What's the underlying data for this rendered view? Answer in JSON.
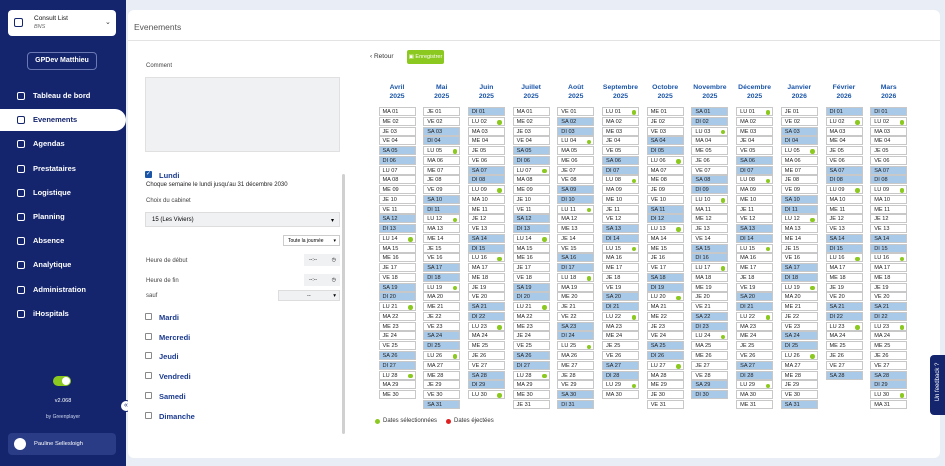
{
  "sidebar": {
    "org_title": "Consult List",
    "org_subtitle": "BNS",
    "user_button": "GPDev Matthieu",
    "menu": [
      "Tableau de bord",
      "Evenements",
      "Agendas",
      "Prestataires",
      "Logistique",
      "Planning",
      "Absence",
      "Analytique",
      "Administration",
      "iHospitals"
    ],
    "version": "v2.068",
    "credit": "by Greenplayer",
    "user_name": "Pauline Sellesloigh"
  },
  "header": {
    "title": "Evenements"
  },
  "form": {
    "comment_label": "Comment",
    "monday_label": "Lundi",
    "monday_note": "Choque semaine le lundi jusqu'au 31 décembre 2030",
    "cabinet_label": "Choix du cabinet",
    "cabinet_value": "15 (Les Viviers)",
    "day_option": "Toute la journée",
    "start_label": "Heure de début",
    "end_label": "Heure de fin",
    "time_placeholder": "--:--",
    "except_label": "sauf",
    "except_value": "--",
    "other_days": [
      "Mardi",
      "Mercredi",
      "Jeudi",
      "Vendredi",
      "Samedi",
      "Dimanche"
    ]
  },
  "calendar": {
    "back": "Retour",
    "save": "Enregistrer",
    "legend": [
      "Dates sélectionnées",
      "Dates éjectées"
    ],
    "months": [
      {
        "name": "Avril",
        "year": "2025",
        "days": [
          "MA 01",
          "ME 02",
          "JE 03",
          "VE 04",
          "SA 05",
          "DI 06",
          "LU 07",
          "MA 08",
          "ME 09",
          "JE 10",
          "VE 11",
          "SA 12",
          "DI 13",
          {
            "label": "LU 14",
            "selected": true
          },
          "MA 15",
          "ME 16",
          "JE 17",
          "VE 18",
          "SA 19",
          "DI 20",
          {
            "label": "LU 21",
            "selected": true
          },
          "MA 22",
          "ME 23",
          "JE 24",
          "VE 25",
          "SA 26",
          "DI 27",
          {
            "label": "LU 28",
            "selected": true
          },
          "MA 29",
          "ME 30"
        ]
      },
      {
        "name": "Mai",
        "year": "2025",
        "days": [
          "JE 01",
          "VE 02",
          "SA 03",
          "DI 04",
          {
            "label": "LU 05",
            "selected": true
          },
          "MA 06",
          "ME 07",
          "JE 08",
          "VE 09",
          "SA 10",
          "DI 11",
          {
            "label": "LU 12",
            "selected": true
          },
          "MA 13",
          "ME 14",
          "JE 15",
          "VE 16",
          "SA 17",
          "DI 18",
          {
            "label": "LU 19",
            "selected": true
          },
          "MA 20",
          "ME 21",
          "JE 22",
          "VE 23",
          "SA 24",
          "DI 25",
          {
            "label": "LU 26",
            "selected": true
          },
          "MA 27",
          "ME 28",
          "JE 29",
          "VE 30",
          "SA 31"
        ]
      },
      {
        "name": "Juin",
        "year": "2025",
        "days": [
          "DI 01",
          {
            "label": "LU 02",
            "selected": true
          },
          "MA 03",
          "ME 04",
          "JE 05",
          "VE 06",
          "SA 07",
          "DI 08",
          {
            "label": "LU 09",
            "selected": true
          },
          "MA 10",
          "ME 11",
          "JE 12",
          "VE 13",
          "SA 14",
          "DI 15",
          {
            "label": "LU 16",
            "selected": true
          },
          "MA 17",
          "ME 18",
          "JE 19",
          "VE 20",
          "SA 21",
          "DI 22",
          {
            "label": "LU 23",
            "selected": true
          },
          "MA 24",
          "ME 25",
          "JE 26",
          "VE 27",
          "SA 28",
          "DI 29",
          {
            "label": "LU 30",
            "selected": true
          }
        ]
      },
      {
        "name": "Juillet",
        "year": "2025",
        "days": [
          "MA 01",
          "ME 02",
          "JE 03",
          "VE 04",
          "SA 05",
          "DI 06",
          {
            "label": "LU 07",
            "selected": true
          },
          "MA 08",
          "ME 09",
          "JE 10",
          "VE 11",
          "SA 12",
          "DI 13",
          {
            "label": "LU 14",
            "selected": true
          },
          "MA 15",
          "ME 16",
          "JE 17",
          "VE 18",
          "SA 19",
          "DI 20",
          {
            "label": "LU 21",
            "selected": true
          },
          "MA 22",
          "ME 23",
          "JE 24",
          "VE 25",
          "SA 26",
          "DI 27",
          {
            "label": "LU 28",
            "selected": true
          },
          "MA 29",
          "ME 30",
          "JE 31"
        ]
      },
      {
        "name": "Août",
        "year": "2025",
        "days": [
          "VE 01",
          "SA 02",
          "DI 03",
          {
            "label": "LU 04",
            "selected": true
          },
          "MA 05",
          "ME 06",
          "JE 07",
          "VE 08",
          "SA 09",
          "DI 10",
          {
            "label": "LU 11",
            "selected": true
          },
          "MA 12",
          "ME 13",
          "JE 14",
          "VE 15",
          "SA 16",
          "DI 17",
          {
            "label": "LU 18",
            "selected": true
          },
          "MA 19",
          "ME 20",
          "JE 21",
          "VE 22",
          "SA 23",
          "DI 24",
          {
            "label": "LU 25",
            "selected": true
          },
          "MA 26",
          "ME 27",
          "JE 28",
          "VE 29",
          "SA 30",
          "DI 31"
        ]
      },
      {
        "name": "Septembre",
        "year": "2025",
        "days": [
          {
            "label": "LU 01",
            "selected": true
          },
          "MA 02",
          "ME 03",
          "JE 04",
          "VE 05",
          "SA 06",
          "DI 07",
          {
            "label": "LU 08",
            "selected": true
          },
          "MA 09",
          "ME 10",
          "JE 11",
          "VE 12",
          "SA 13",
          "DI 14",
          {
            "label": "LU 15",
            "selected": true
          },
          "MA 16",
          "ME 17",
          "JE 18",
          "VE 19",
          "SA 20",
          "DI 21",
          {
            "label": "LU 22",
            "selected": true
          },
          "MA 23",
          "ME 24",
          "JE 25",
          "VE 26",
          "SA 27",
          "DI 28",
          {
            "label": "LU 29",
            "selected": true
          },
          "MA 30"
        ]
      },
      {
        "name": "Octobre",
        "year": "2025",
        "days": [
          "ME 01",
          "JE 02",
          "VE 03",
          "SA 04",
          "DI 05",
          {
            "label": "LU 06",
            "selected": true
          },
          "MA 07",
          "ME 08",
          "JE 09",
          "VE 10",
          "SA 11",
          "DI 12",
          {
            "label": "LU 13",
            "selected": true
          },
          "MA 14",
          "ME 15",
          "JE 16",
          "VE 17",
          "SA 18",
          "DI 19",
          {
            "label": "LU 20",
            "selected": true
          },
          "MA 21",
          "ME 22",
          "JE 23",
          "VE 24",
          "SA 25",
          "DI 26",
          {
            "label": "LU 27",
            "selected": true
          },
          "MA 28",
          "ME 29",
          "JE 30",
          "VE 31"
        ]
      },
      {
        "name": "Novembre",
        "year": "2025",
        "days": [
          "SA 01",
          "DI 02",
          {
            "label": "LU 03",
            "selected": true
          },
          "MA 04",
          "ME 05",
          "JE 06",
          "VE 07",
          "SA 08",
          "DI 09",
          {
            "label": "LU 10",
            "selected": true
          },
          "MA 11",
          "ME 12",
          "JE 13",
          "VE 14",
          "SA 15",
          "DI 16",
          {
            "label": "LU 17",
            "selected": true
          },
          "MA 18",
          "ME 19",
          "JE 20",
          "VE 21",
          "SA 22",
          "DI 23",
          {
            "label": "LU 24",
            "selected": true
          },
          "MA 25",
          "ME 26",
          "JE 27",
          "VE 28",
          "SA 29",
          "DI 30"
        ]
      },
      {
        "name": "Décembre",
        "year": "2025",
        "days": [
          {
            "label": "LU 01",
            "selected": true
          },
          "MA 02",
          "ME 03",
          "JE 04",
          "VE 05",
          "SA 06",
          "DI 07",
          {
            "label": "LU 08",
            "selected": true
          },
          "MA 09",
          "ME 10",
          "JE 11",
          "VE 12",
          "SA 13",
          "DI 14",
          {
            "label": "LU 15",
            "selected": true
          },
          "MA 16",
          "ME 17",
          "JE 18",
          "VE 19",
          "SA 20",
          "DI 21",
          {
            "label": "LU 22",
            "selected": true
          },
          "MA 23",
          "ME 24",
          "JE 25",
          "VE 26",
          "SA 27",
          "DI 28",
          {
            "label": "LU 29",
            "selected": true
          },
          "MA 30",
          "ME 31"
        ]
      },
      {
        "name": "Janvier",
        "year": "2026",
        "days": [
          "JE 01",
          "VE 02",
          "SA 03",
          "DI 04",
          {
            "label": "LU 05",
            "selected": true
          },
          "MA 06",
          "ME 07",
          "JE 08",
          "VE 09",
          "SA 10",
          "DI 11",
          {
            "label": "LU 12",
            "selected": true
          },
          "MA 13",
          "ME 14",
          "JE 15",
          "VE 16",
          "SA 17",
          "DI 18",
          {
            "label": "LU 19",
            "selected": true
          },
          "MA 20",
          "ME 21",
          "JE 22",
          "VE 23",
          "SA 24",
          "DI 25",
          {
            "label": "LU 26",
            "selected": true
          },
          "MA 27",
          "ME 28",
          "JE 29",
          "VE 30",
          "SA 31"
        ]
      },
      {
        "name": "Février",
        "year": "2026",
        "days": [
          "DI 01",
          {
            "label": "LU 02",
            "selected": true
          },
          "MA 03",
          "ME 04",
          "JE 05",
          "VE 06",
          "SA 07",
          "DI 08",
          {
            "label": "LU 09",
            "selected": true
          },
          "MA 10",
          "ME 11",
          "JE 12",
          "VE 13",
          "SA 14",
          "DI 15",
          {
            "label": "LU 16",
            "selected": true
          },
          "MA 17",
          "ME 18",
          "JE 19",
          "VE 20",
          "SA 21",
          "DI 22",
          {
            "label": "LU 23",
            "selected": true
          },
          "MA 24",
          "ME 25",
          "JE 26",
          "VE 27",
          "SA 28"
        ]
      },
      {
        "name": "Mars",
        "year": "2026",
        "days": [
          "DI 01",
          {
            "label": "LU 02",
            "selected": true
          },
          "MA 03",
          "ME 04",
          "JE 05",
          "VE 06",
          "SA 07",
          "DI 08",
          {
            "label": "LU 09",
            "selected": true
          },
          "MA 10",
          "ME 11",
          "JE 12",
          "VE 13",
          "SA 14",
          "DI 15",
          {
            "label": "LU 16",
            "selected": true
          },
          "MA 17",
          "ME 18",
          "JE 19",
          "VE 20",
          "SA 21",
          "DI 22",
          {
            "label": "LU 23",
            "selected": true
          },
          "MA 24",
          "ME 25",
          "JE 26",
          "VE 27",
          "SA 28",
          "DI 29",
          {
            "label": "LU 30",
            "selected": true
          },
          "MA 31"
        ]
      }
    ]
  },
  "feedback": "Un feedback ?"
}
